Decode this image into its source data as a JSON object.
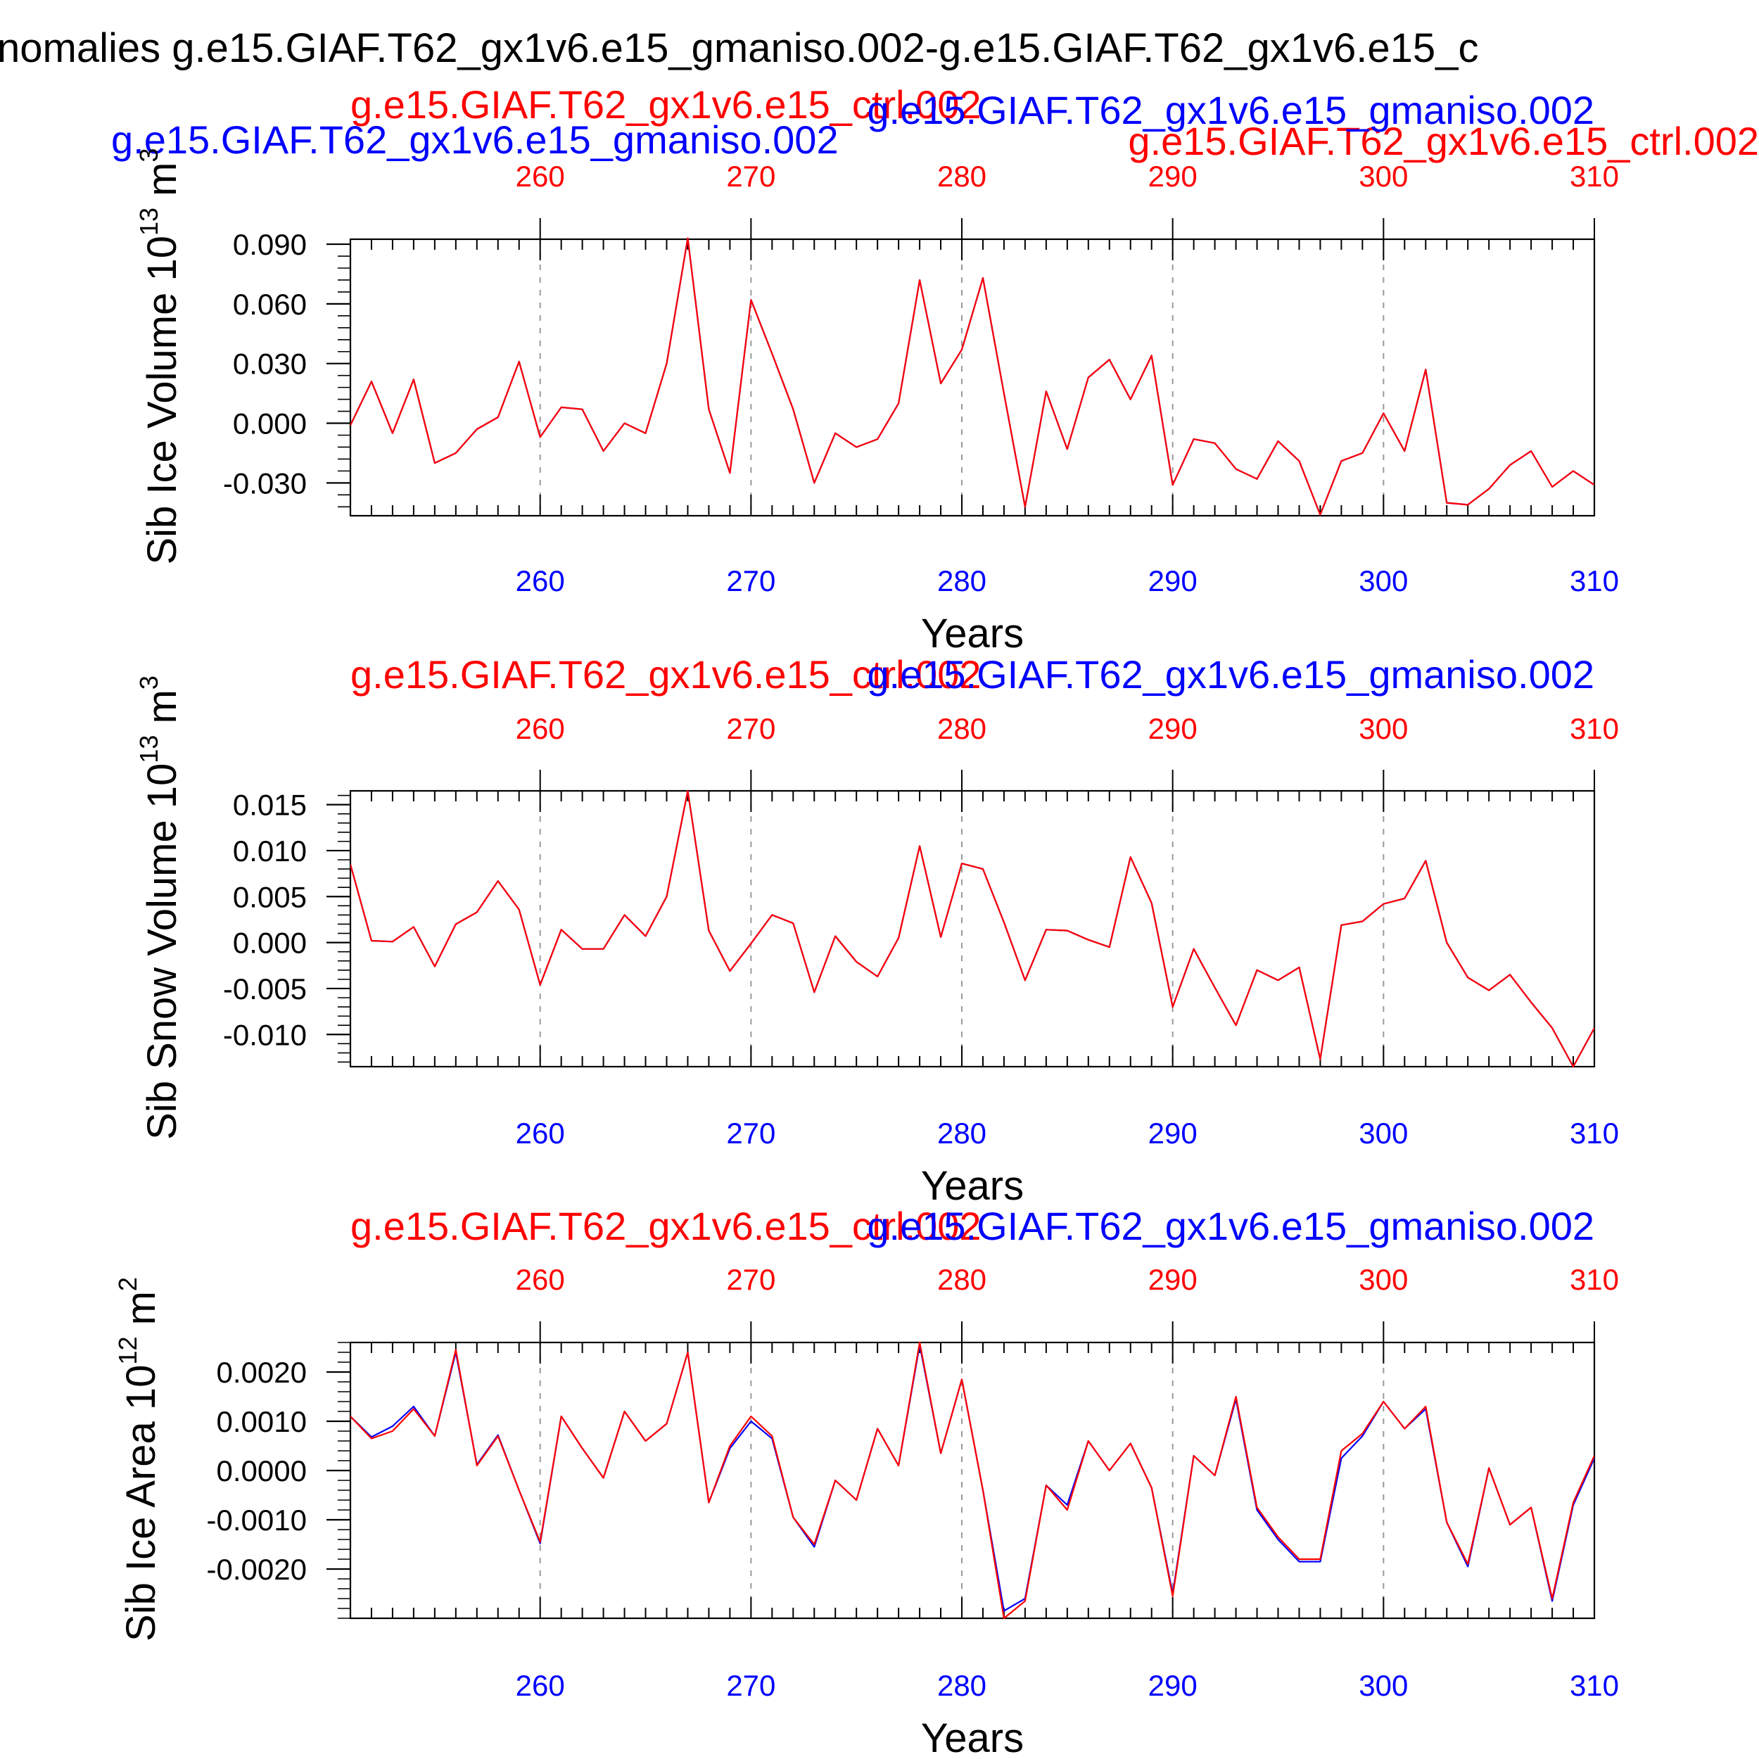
{
  "figure_title": "nomalies g.e15.GIAF.T62_gx1v6.e15_gmaniso.002-g.e15.GIAF.T62_gx1v6.e15_c",
  "colors": {
    "ctrl": "#ff0000",
    "exp": "#0000ff",
    "text": "#000000",
    "grid": "#9a9a9a"
  },
  "chart_data": [
    {
      "type": "line",
      "ylabel": "Sib Ice Volume 10",
      "ylabel_exp": "13",
      "ylabel_unit": "m",
      "ylabel_unit_exp": "3",
      "xlabel": "Years",
      "top_label_red": "g.e15.GIAF.T62_gx1v6.e15_ctrl.002",
      "top_label_blue": "g.e15.GIAF.T62_gx1v6.e15_gmaniso.002",
      "xlim": [
        251,
        310
      ],
      "ylim": [
        -0.0465,
        0.0925
      ],
      "xticks": [
        "260",
        "270",
        "280",
        "290",
        "300",
        "310"
      ],
      "yticks": [
        "0.090",
        "0.060",
        "0.030",
        "0.000",
        "-0.030"
      ],
      "grid_x": true,
      "x": [
        251,
        252,
        253,
        254,
        255,
        256,
        257,
        258,
        259,
        260,
        261,
        262,
        263,
        264,
        265,
        266,
        267,
        268,
        269,
        270,
        271,
        272,
        273,
        274,
        275,
        276,
        277,
        278,
        279,
        280,
        281,
        282,
        283,
        284,
        285,
        286,
        287,
        288,
        289,
        290,
        291,
        292,
        293,
        294,
        295,
        296,
        297,
        298,
        299,
        300,
        301,
        302,
        303,
        304,
        305,
        306,
        307,
        308,
        309,
        310
      ],
      "series": [
        {
          "name": "g.e15.GIAF.T62_gx1v6.e15_ctrl.002",
          "color": "ctrl",
          "values": [
            -0.001,
            0.021,
            -0.005,
            0.022,
            -0.02,
            -0.015,
            -0.003,
            0.003,
            0.031,
            -0.007,
            0.008,
            0.007,
            -0.014,
            0.0,
            -0.005,
            0.03,
            0.093,
            0.007,
            -0.025,
            0.062,
            0.035,
            0.007,
            -0.03,
            -0.005,
            -0.012,
            -0.008,
            0.01,
            0.072,
            0.02,
            0.037,
            0.073,
            0.015,
            -0.042,
            0.016,
            -0.013,
            0.023,
            0.032,
            0.012,
            0.034,
            -0.031,
            -0.008,
            -0.01,
            -0.023,
            -0.028,
            -0.009,
            -0.019,
            -0.046,
            -0.019,
            -0.015,
            0.005,
            -0.014,
            0.027,
            -0.04,
            -0.041,
            -0.033,
            -0.021,
            -0.014,
            -0.032,
            -0.024,
            -0.031
          ]
        },
        {
          "name": "g.e15.GIAF.T62_gx1v6.e15_gmaniso.002",
          "color": "exp",
          "values": [
            -0.001,
            0.021,
            -0.005,
            0.022,
            -0.02,
            -0.015,
            -0.003,
            0.003,
            0.031,
            -0.007,
            0.008,
            0.007,
            -0.014,
            0.0,
            -0.005,
            0.03,
            0.093,
            0.007,
            -0.025,
            0.062,
            0.035,
            0.007,
            -0.03,
            -0.005,
            -0.012,
            -0.008,
            0.01,
            0.072,
            0.02,
            0.037,
            0.073,
            0.015,
            -0.042,
            0.016,
            -0.013,
            0.023,
            0.032,
            0.012,
            0.034,
            -0.031,
            -0.008,
            -0.01,
            -0.023,
            -0.028,
            -0.009,
            -0.019,
            -0.046,
            -0.019,
            -0.015,
            0.005,
            -0.014,
            0.027,
            -0.04,
            -0.041,
            -0.033,
            -0.021,
            -0.014,
            -0.032,
            -0.024,
            -0.031
          ]
        }
      ]
    },
    {
      "type": "line",
      "ylabel": "Sib Snow Volume 10",
      "ylabel_exp": "13",
      "ylabel_unit": "m",
      "ylabel_unit_exp": "3",
      "xlabel": "Years",
      "top_label_red": "g.e15.GIAF.T62_gx1v6.e15_ctrl.002",
      "top_label_blue": "g.e15.GIAF.T62_gx1v6.e15_gmaniso.002",
      "xlim": [
        251,
        310
      ],
      "ylim": [
        -0.0135,
        0.0165
      ],
      "xticks": [
        "260",
        "270",
        "280",
        "290",
        "300",
        "310"
      ],
      "yticks": [
        "0.015",
        "0.010",
        "0.005",
        "0.000",
        "-0.005",
        "-0.010"
      ],
      "grid_x": true,
      "x": [
        251,
        252,
        253,
        254,
        255,
        256,
        257,
        258,
        259,
        260,
        261,
        262,
        263,
        264,
        265,
        266,
        267,
        268,
        269,
        270,
        271,
        272,
        273,
        274,
        275,
        276,
        277,
        278,
        279,
        280,
        281,
        282,
        283,
        284,
        285,
        286,
        287,
        288,
        289,
        290,
        291,
        292,
        293,
        294,
        295,
        296,
        297,
        298,
        299,
        300,
        301,
        302,
        303,
        304,
        305,
        306,
        307,
        308,
        309,
        310
      ],
      "series": [
        {
          "name": "g.e15.GIAF.T62_gx1v6.e15_ctrl.002",
          "color": "ctrl",
          "values": [
            0.0085,
            0.0002,
            0.0001,
            0.0017,
            -0.0026,
            0.002,
            0.0033,
            0.0067,
            0.0036,
            -0.0046,
            0.0014,
            -0.0007,
            -0.0007,
            0.003,
            0.0007,
            0.005,
            0.0165,
            0.0013,
            -0.0031,
            -0.0001,
            0.003,
            0.0021,
            -0.0054,
            0.0007,
            -0.0021,
            -0.0037,
            0.0005,
            0.0105,
            0.0006,
            0.0086,
            0.008,
            0.0022,
            -0.0041,
            0.0014,
            0.0013,
            0.0003,
            -0.0005,
            0.0093,
            0.0043,
            -0.007,
            -0.0007,
            -0.0049,
            -0.009,
            -0.003,
            -0.0041,
            -0.0027,
            -0.0127,
            0.0019,
            0.0023,
            0.0042,
            0.0048,
            0.0089,
            0.0,
            -0.0038,
            -0.0052,
            -0.0035,
            -0.0065,
            -0.0093,
            -0.0135,
            -0.0093
          ]
        },
        {
          "name": "g.e15.GIAF.T62_gx1v6.e15_gmaniso.002",
          "color": "exp",
          "values": [
            0.0085,
            0.0002,
            0.0001,
            0.0017,
            -0.0026,
            0.002,
            0.0033,
            0.0067,
            0.0036,
            -0.0046,
            0.0014,
            -0.0007,
            -0.0007,
            0.003,
            0.0007,
            0.005,
            0.0165,
            0.0013,
            -0.0031,
            -0.0001,
            0.003,
            0.0021,
            -0.0054,
            0.0007,
            -0.0021,
            -0.0037,
            0.0005,
            0.0105,
            0.0006,
            0.0086,
            0.008,
            0.0022,
            -0.0041,
            0.0014,
            0.0013,
            0.0003,
            -0.0005,
            0.0093,
            0.0043,
            -0.007,
            -0.0007,
            -0.0049,
            -0.009,
            -0.003,
            -0.0041,
            -0.0027,
            -0.0127,
            0.0019,
            0.0023,
            0.0042,
            0.0048,
            0.0089,
            0.0,
            -0.0038,
            -0.0052,
            -0.0035,
            -0.0065,
            -0.0093,
            -0.0135,
            -0.0093
          ]
        }
      ]
    },
    {
      "type": "line",
      "ylabel": "Sib Ice Area 10",
      "ylabel_exp": "12",
      "ylabel_unit": "m",
      "ylabel_unit_exp": "2",
      "xlabel": "Years",
      "top_label_red": "g.e15.GIAF.T62_gx1v6.e15_ctrl.002",
      "top_label_blue": "g.e15.GIAF.T62_gx1v6.e15_gmaniso.002",
      "xlim": [
        251,
        310
      ],
      "ylim": [
        -0.003,
        0.0026
      ],
      "xticks": [
        "260",
        "270",
        "280",
        "290",
        "300",
        "310"
      ],
      "yticks": [
        "0.0020",
        "0.0010",
        "0.0000",
        "-0.0010",
        "-0.0020"
      ],
      "grid_x": true,
      "x": [
        251,
        252,
        253,
        254,
        255,
        256,
        257,
        258,
        259,
        260,
        261,
        262,
        263,
        264,
        265,
        266,
        267,
        268,
        269,
        270,
        271,
        272,
        273,
        274,
        275,
        276,
        277,
        278,
        279,
        280,
        281,
        282,
        283,
        284,
        285,
        286,
        287,
        288,
        289,
        290,
        291,
        292,
        293,
        294,
        295,
        296,
        297,
        298,
        299,
        300,
        301,
        302,
        303,
        304,
        305,
        306,
        307,
        308,
        309,
        310
      ],
      "series": [
        {
          "name": "g.e15.GIAF.T62_gx1v6.e15_ctrl.002",
          "color": "ctrl",
          "values": [
            0.0011,
            0.00065,
            0.0008,
            0.00125,
            0.0007,
            0.00245,
            0.0001,
            0.0007,
            -0.0004,
            -0.00145,
            0.0011,
            0.00045,
            -0.00015,
            0.0012,
            0.0006,
            0.00095,
            0.0024,
            -0.00065,
            0.0005,
            0.0011,
            0.0007,
            -0.00095,
            -0.0015,
            -0.0002,
            -0.0006,
            0.00085,
            0.0001,
            0.0026,
            0.00035,
            0.00185,
            -0.0004,
            -0.003,
            -0.00265,
            -0.0003,
            -0.0008,
            0.0006,
            0.0,
            0.00055,
            -0.00035,
            -0.00255,
            0.0003,
            -0.0001,
            0.0015,
            -0.00075,
            -0.00135,
            -0.0018,
            -0.0018,
            0.0004,
            0.00075,
            0.0014,
            0.00085,
            0.0013,
            -0.00105,
            -0.0019,
            5e-05,
            -0.0011,
            -0.00075,
            -0.0026,
            -0.00065,
            0.0003
          ]
        },
        {
          "name": "g.e15.GIAF.T62_gx1v6.e15_gmaniso.002",
          "color": "exp",
          "values": [
            0.0011,
            0.00068,
            0.0009,
            0.0013,
            0.0007,
            0.0024,
            0.00012,
            0.00072,
            -0.0004,
            -0.00148,
            0.0011,
            0.00045,
            -0.00015,
            0.0012,
            0.0006,
            0.00095,
            0.0024,
            -0.00065,
            0.00045,
            0.001,
            0.00065,
            -0.00095,
            -0.00155,
            -0.0002,
            -0.0006,
            0.00085,
            0.0001,
            0.00255,
            0.00035,
            0.00185,
            -0.0004,
            -0.00285,
            -0.0026,
            -0.0003,
            -0.0007,
            0.0006,
            0.0,
            0.00055,
            -0.00035,
            -0.0025,
            0.0003,
            -0.0001,
            0.00145,
            -0.0008,
            -0.0014,
            -0.00185,
            -0.00185,
            0.00025,
            0.0007,
            0.0014,
            0.00085,
            0.00125,
            -0.00105,
            -0.00195,
            5e-05,
            -0.0011,
            -0.00075,
            -0.00265,
            -0.0007,
            0.00025
          ]
        }
      ]
    }
  ]
}
